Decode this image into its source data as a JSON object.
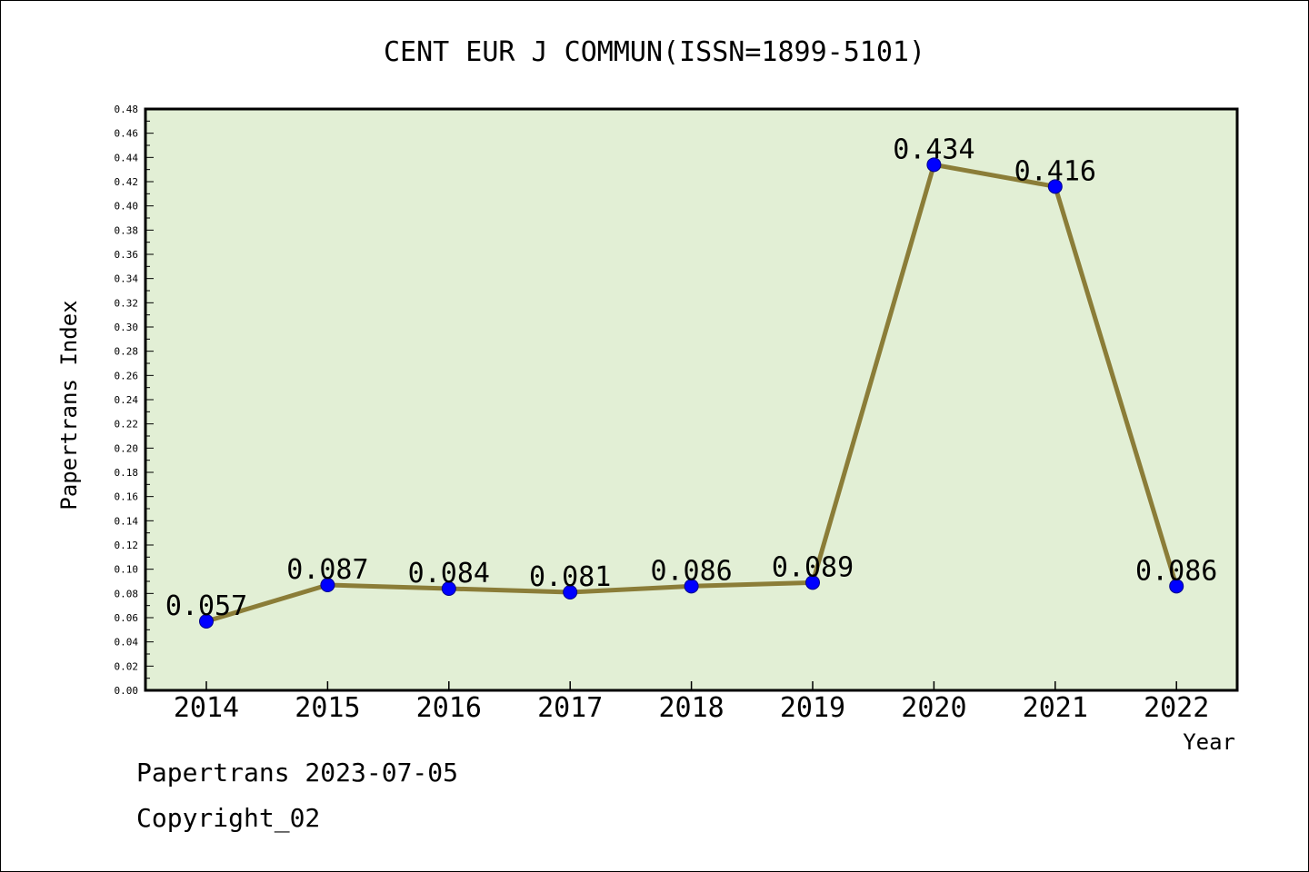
{
  "chart_data": {
    "type": "line",
    "title": "CENT EUR J COMMUN(ISSN=1899-5101)",
    "xlabel": "Year",
    "ylabel": "Papertrans Index",
    "categories": [
      "2014",
      "2015",
      "2016",
      "2017",
      "2018",
      "2019",
      "2020",
      "2021",
      "2022"
    ],
    "values": [
      0.057,
      0.087,
      0.084,
      0.081,
      0.086,
      0.089,
      0.434,
      0.416,
      0.086
    ],
    "data_labels": [
      "0.057",
      "0.087",
      "0.084",
      "0.081",
      "0.086",
      "0.089",
      "0.434",
      "0.416",
      "0.086"
    ],
    "ylim": [
      0,
      0.48
    ],
    "yticks": [
      "0.00",
      "0.02",
      "0.04",
      "0.06",
      "0.08",
      "0.10",
      "0.12",
      "0.14",
      "0.16",
      "0.18",
      "0.20",
      "0.22",
      "0.24",
      "0.26",
      "0.28",
      "0.30",
      "0.32",
      "0.34",
      "0.36",
      "0.38",
      "0.40",
      "0.42",
      "0.44",
      "0.46",
      "0.48"
    ],
    "grid": false,
    "colors": {
      "plot_background": "#e2efd5",
      "line": "#8b7d38",
      "marker": "#0000ff"
    }
  },
  "footer": {
    "line1": "Papertrans 2023-07-05",
    "line2": "Copyright_02"
  }
}
